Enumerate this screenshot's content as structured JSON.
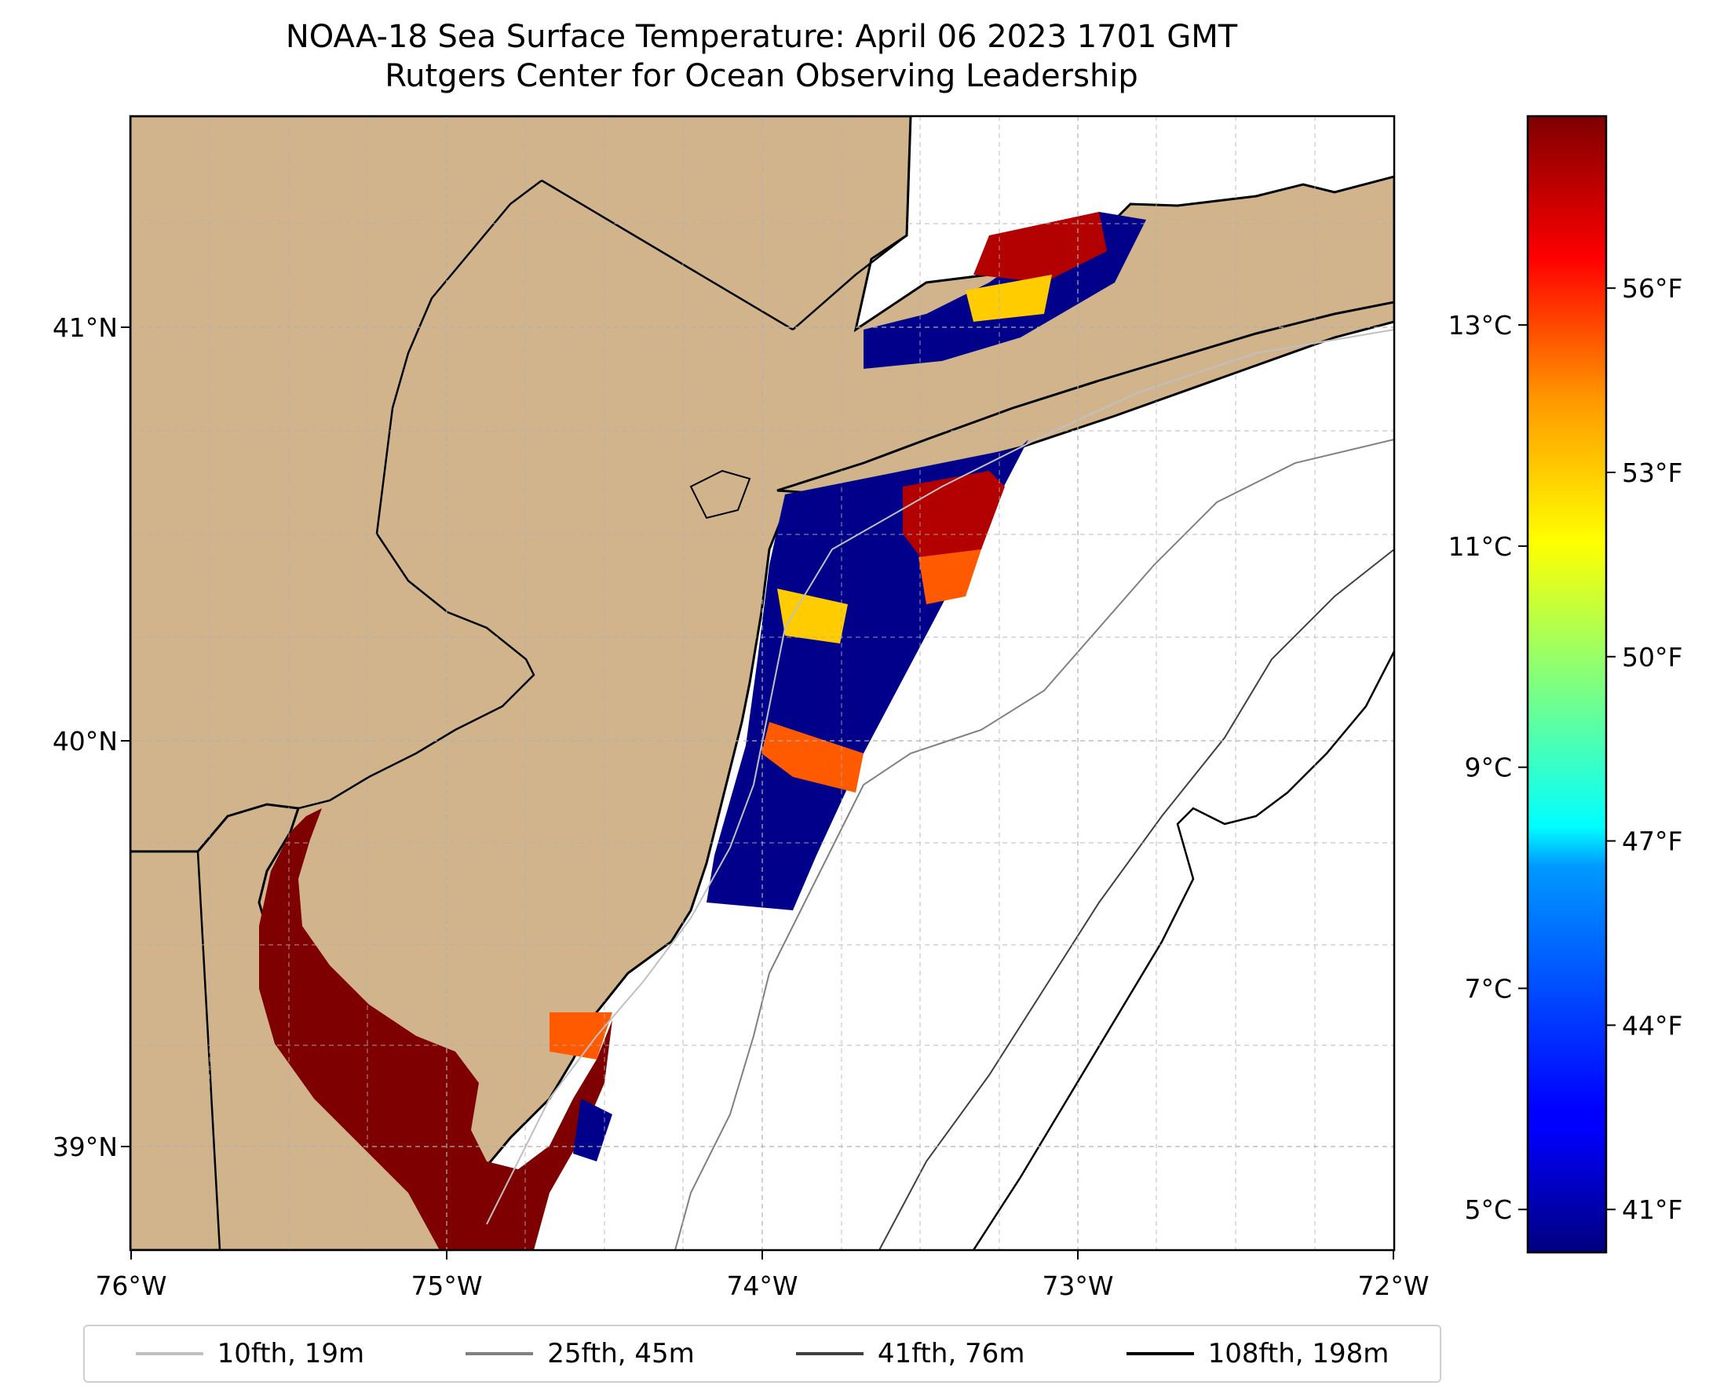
{
  "title": {
    "line1": "NOAA-18 Sea Surface Temperature: April 06 2023 1701 GMT",
    "line2": "Rutgers Center for Ocean Observing Leadership"
  },
  "map": {
    "longitude_labels": [
      "76°W",
      "75°W",
      "74°W",
      "73°W",
      "72°W"
    ],
    "latitude_labels": [
      "41°N",
      "40°N",
      "39°N"
    ],
    "colors": {
      "land": "#d2b48c",
      "ocean": "#ffffff",
      "coastline": "#000000",
      "gridline": "#b0b0b0"
    }
  },
  "colorbar": {
    "colormap": "jet",
    "min_f": 40.3,
    "max_f": 58.8,
    "celsius_ticks": [
      "13°C",
      "11°C",
      "9°C",
      "7°C",
      "5°C"
    ],
    "fahrenheit_ticks": [
      "56°F",
      "53°F",
      "50°F",
      "47°F",
      "44°F",
      "41°F"
    ],
    "celsius_values": [
      13,
      11,
      9,
      7,
      5
    ],
    "fahrenheit_values": [
      56,
      53,
      50,
      47,
      44,
      41
    ]
  },
  "legend": {
    "items": [
      {
        "label": "10fth, 19m",
        "color": "#c0c0c0"
      },
      {
        "label": "25fth, 45m",
        "color": "#808080"
      },
      {
        "label": "41fth, 76m",
        "color": "#404040"
      },
      {
        "label": "108fth, 198m",
        "color": "#000000"
      }
    ]
  }
}
